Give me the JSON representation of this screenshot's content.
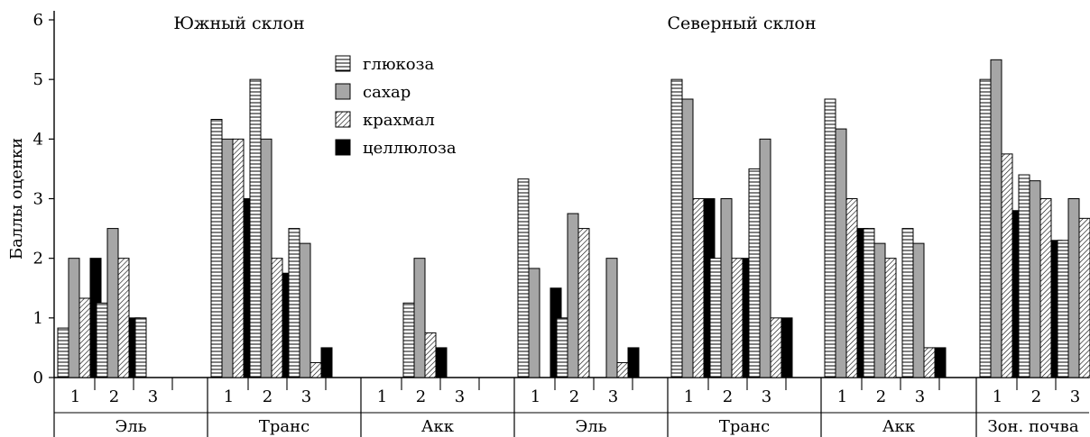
{
  "chart_data": {
    "type": "bar",
    "ylabel": "Баллы оценки",
    "ylim": [
      0,
      6
    ],
    "yticks": [
      "0",
      "1",
      "2",
      "3",
      "4",
      "5",
      "6"
    ],
    "grid": false,
    "legend_position": "top-center",
    "sections": [
      {
        "title": "Южный склон"
      },
      {
        "title": "Северный склон"
      }
    ],
    "series": [
      {
        "name": "глюкоза",
        "pattern": "horizontal-hatch"
      },
      {
        "name": "сахар",
        "pattern": "gray-fill",
        "color": "#a6a6a6"
      },
      {
        "name": "крахмал",
        "pattern": "diagonal-hatch"
      },
      {
        "name": "целлюлоза",
        "pattern": "black-fill",
        "color": "#000000"
      }
    ],
    "groups": [
      {
        "label": "Эль",
        "section": "Южный склон",
        "subgroups": [
          {
            "label": "1",
            "values": [
              0.83,
              2.0,
              1.33,
              2.0
            ]
          },
          {
            "label": "2",
            "values": [
              1.25,
              2.5,
              2.0,
              1.0
            ]
          },
          {
            "label": "3",
            "values": [
              1.0,
              null,
              null,
              null
            ]
          }
        ]
      },
      {
        "label": "Транс",
        "section": "Южный склон",
        "subgroups": [
          {
            "label": "1",
            "values": [
              4.33,
              4.0,
              4.0,
              3.0
            ]
          },
          {
            "label": "2",
            "values": [
              5.0,
              4.0,
              2.0,
              1.75
            ]
          },
          {
            "label": "3",
            "values": [
              2.5,
              2.25,
              0.25,
              0.5
            ]
          }
        ]
      },
      {
        "label": "Акк",
        "section": "Южный склон",
        "subgroups": [
          {
            "label": "1",
            "values": [
              null,
              null,
              null,
              null
            ]
          },
          {
            "label": "2",
            "values": [
              1.25,
              2.0,
              0.75,
              0.5
            ]
          },
          {
            "label": "3",
            "values": [
              null,
              null,
              null,
              null
            ]
          }
        ]
      },
      {
        "label": "Эль",
        "section": "Северный склон",
        "subgroups": [
          {
            "label": "1",
            "values": [
              3.33,
              1.83,
              null,
              1.5
            ]
          },
          {
            "label": "2",
            "values": [
              1.0,
              2.75,
              2.5,
              null
            ]
          },
          {
            "label": "3",
            "values": [
              null,
              2.0,
              0.25,
              0.5
            ]
          }
        ]
      },
      {
        "label": "Транс",
        "section": "Северный склон",
        "subgroups": [
          {
            "label": "1",
            "values": [
              5.0,
              4.67,
              3.0,
              3.0
            ]
          },
          {
            "label": "2",
            "values": [
              2.0,
              3.0,
              2.0,
              2.0
            ]
          },
          {
            "label": "3",
            "values": [
              3.5,
              4.0,
              1.0,
              1.0
            ]
          }
        ]
      },
      {
        "label": "Акк",
        "section": "Северный склон",
        "subgroups": [
          {
            "label": "1",
            "values": [
              4.67,
              4.17,
              3.0,
              2.5
            ]
          },
          {
            "label": "2",
            "values": [
              2.5,
              2.25,
              2.0,
              null
            ]
          },
          {
            "label": "3",
            "values": [
              2.5,
              2.25,
              0.5,
              0.5
            ]
          }
        ]
      },
      {
        "label": "Зон. почва",
        "section": "Северный склон",
        "subgroups": [
          {
            "label": "1",
            "values": [
              5.0,
              5.33,
              3.75,
              2.8
            ]
          },
          {
            "label": "2",
            "values": [
              3.4,
              3.3,
              3.0,
              2.3
            ]
          },
          {
            "label": "3",
            "values": [
              2.3,
              3.0,
              2.67,
              2.3
            ]
          }
        ]
      }
    ]
  }
}
